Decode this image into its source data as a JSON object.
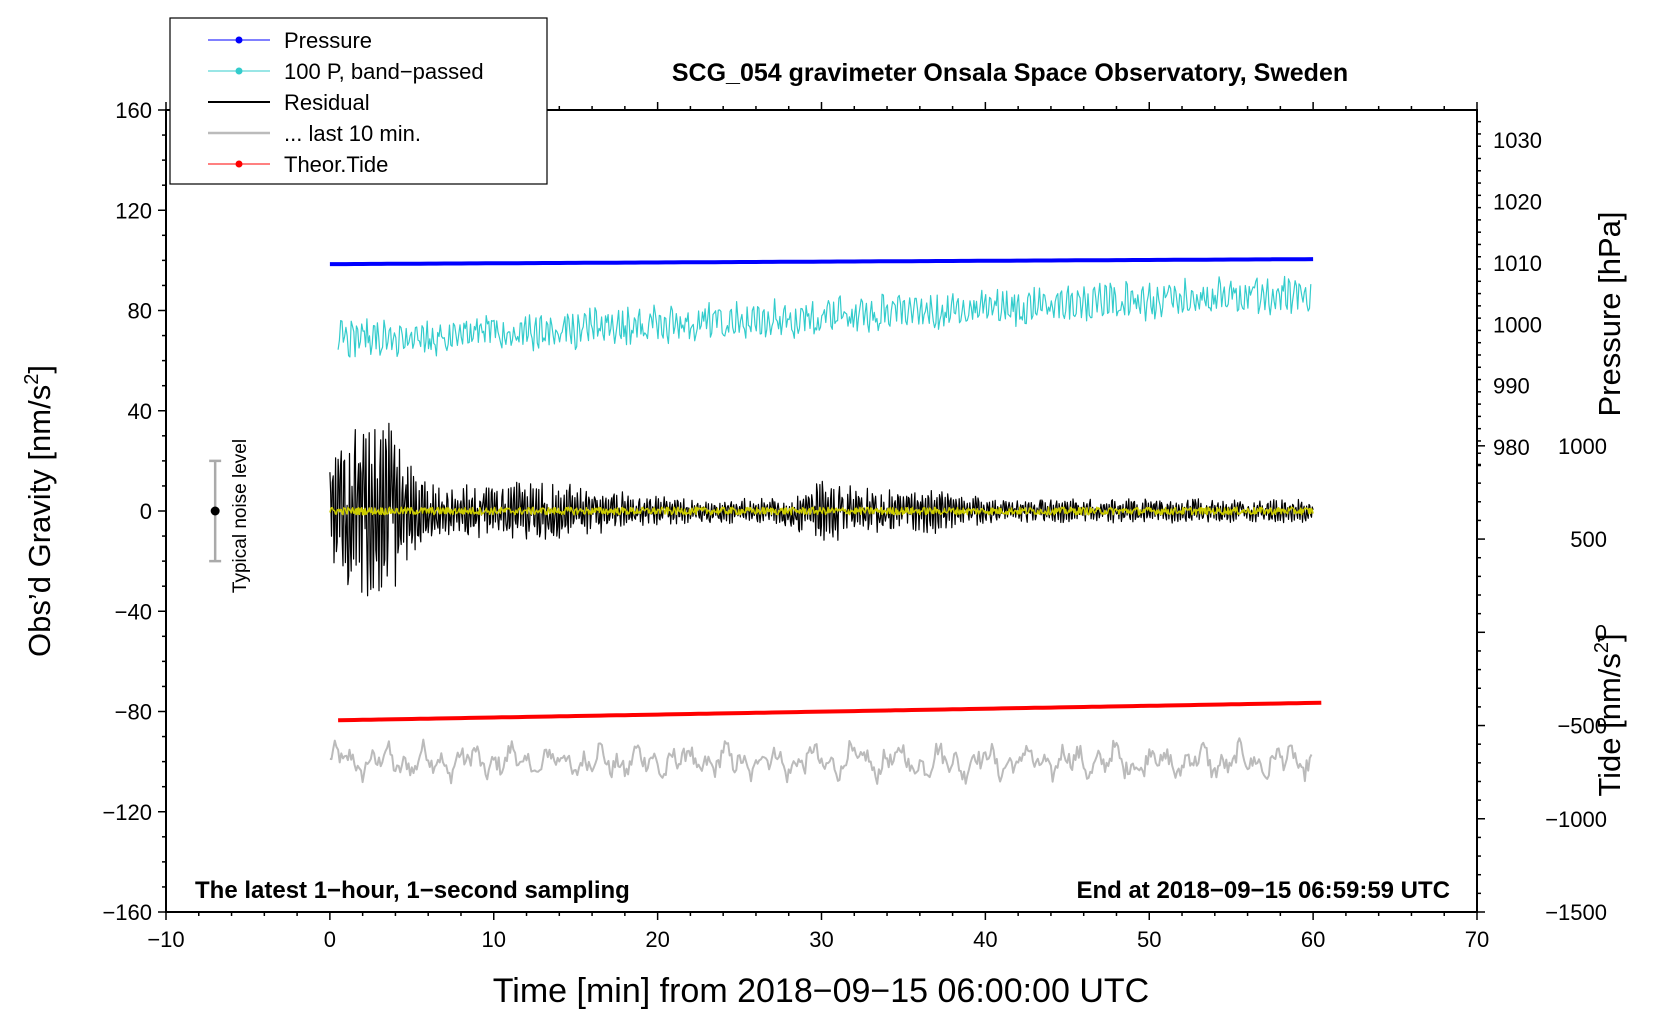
{
  "chart_data": {
    "type": "line",
    "title": "SCG_054 gravimeter Onsala Space Observatory, Sweden",
    "xlabel": "Time [min] from 2018−09−15 06:00:00 UTC",
    "ylabel_main": "Obs’d Gravity [nm/s",
    "ylabel_main_sup": "2",
    "ylabel_main_tail": "]",
    "ylabel_pressure": "Pressure [hPa]",
    "ylabel_tide": "Tide [nm/s",
    "ylabel_tide_sup": "2",
    "ylabel_tide_tail": "]",
    "xlim": [
      -10,
      70
    ],
    "ylim": [
      -160,
      160
    ],
    "xticks": [
      "−10",
      "0",
      "10",
      "20",
      "30",
      "40",
      "50",
      "60",
      "70"
    ],
    "xtick_values": [
      -10,
      0,
      10,
      20,
      30,
      40,
      50,
      60,
      70
    ],
    "yticks": [
      "−160",
      "−120",
      "−80",
      "−40",
      "0",
      "40",
      "80",
      "120",
      "160"
    ],
    "ytick_values": [
      -160,
      -120,
      -80,
      -40,
      0,
      40,
      80,
      120,
      160
    ],
    "pressure_ticks": [
      "980",
      "990",
      "1000",
      "1010",
      "1020",
      "1030"
    ],
    "pressure_tick_values": [
      980,
      990,
      1000,
      1010,
      1020,
      1030
    ],
    "pressure_axis_map": {
      "value_a": 1010,
      "gravity_a": 99,
      "value_b": 1030,
      "gravity_b": 148
    },
    "tide_ticks": [
      "−1500",
      "−1000",
      "−500",
      "0",
      "500",
      "1000"
    ],
    "tide_tick_values": [
      -1500,
      -1000,
      -500,
      0,
      500,
      1000
    ],
    "tide_axis_map": {
      "value_a": -1500,
      "gravity_a": -160,
      "value_b": 1000,
      "gravity_b": 26
    },
    "annotations": {
      "bottom_left": "The latest 1−hour, 1−second sampling",
      "bottom_right": "End at 2018−09−15 06:59:59 UTC",
      "noise_label": "Typical noise level"
    },
    "noise_bar": {
      "x": -7,
      "center": 0,
      "low": -20,
      "high": 20
    },
    "series": [
      {
        "name": "Pressure",
        "color": "#0000ff",
        "style": "line-dot",
        "x_range": [
          0,
          60
        ],
        "gravity_units": [
          98.5,
          100.5
        ]
      },
      {
        "name": "100 P, band−passed",
        "color": "#33cccc",
        "style": "line-dot",
        "x_range": [
          0.5,
          59.9
        ],
        "mean_start": 68,
        "mean_end": 87,
        "amplitude": 7
      },
      {
        "name": "Residual",
        "color": "#000000",
        "style": "line",
        "x_range": [
          0,
          60
        ],
        "peak_amplitude": 44,
        "late_amplitude": 5
      },
      {
        "name": "... last 10 min.",
        "color": "#bbbbbb",
        "style": "line",
        "x_range": [
          0,
          60
        ],
        "mean": -100,
        "amplitude": 6
      },
      {
        "name": "Theor.Tide",
        "color": "#ff0000",
        "style": "line-dot",
        "x_range": [
          0.5,
          60.5
        ],
        "gravity_units": [
          -83.5,
          -76.5
        ]
      }
    ],
    "overlay_series": {
      "name": "yellow filtered residual",
      "color": "#cccc00"
    }
  }
}
